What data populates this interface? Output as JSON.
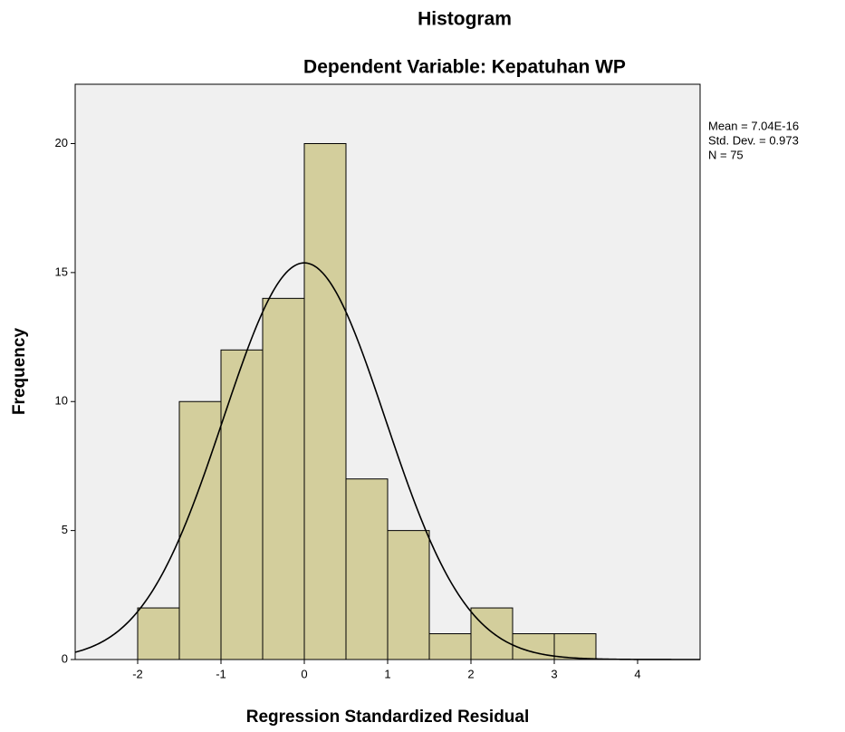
{
  "chart_data": {
    "type": "histogram",
    "title": "Histogram",
    "subtitle": "Dependent Variable: Kepatuhan WP",
    "x_label": "Regression Standardized Residual",
    "y_label": "Frequency",
    "bins": [
      -2,
      -1.5,
      -1,
      -0.5,
      0,
      0.5,
      1,
      1.5,
      2,
      2.5,
      3,
      3.5
    ],
    "values": [
      2,
      10,
      12,
      14,
      20,
      7,
      5,
      1,
      2,
      1,
      1
    ],
    "color": "#d3ce9c",
    "background": "#f0f0f0",
    "curve_color": "#000000",
    "xlim": [
      -2.75,
      4.75
    ],
    "xticks": [
      -2,
      -1,
      0,
      1,
      2,
      3,
      4
    ],
    "ylim": [
      0,
      22.3
    ],
    "yticks": [
      0,
      5,
      10,
      15,
      20
    ],
    "normal_curve": {
      "mean": {
        "value": 7.04e-16,
        "label": "Mean = 7.04E-16"
      },
      "std": {
        "value": 0.973,
        "label": "Std. Dev. = 0.973"
      },
      "n": {
        "value": 75,
        "label": "N = 75"
      }
    }
  }
}
